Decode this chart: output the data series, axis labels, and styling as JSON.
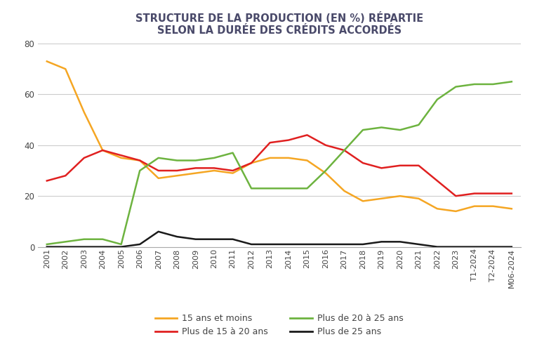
{
  "title_line1": "STRUCTURE DE LA PRODUCTION (EN %) RÉPARTIE",
  "title_line2": "SELON LA DURÉE DES CRÉDITS ACCORDÉS",
  "title_color": "#4a4a6a",
  "x_labels": [
    "2001",
    "2002",
    "2003",
    "2004",
    "2005",
    "2006",
    "2007",
    "2008",
    "2009",
    "2010",
    "2011",
    "2012",
    "2013",
    "2014",
    "2015",
    "2016",
    "2017",
    "2018",
    "2019",
    "2020",
    "2021",
    "2022",
    "2023",
    "T1-2024",
    "T2-2024",
    "M06-2024"
  ],
  "series": [
    {
      "label": "15 ans et moins",
      "color": "#f5a623",
      "values": [
        73,
        70,
        53,
        38,
        35,
        34,
        27,
        28,
        29,
        30,
        29,
        33,
        35,
        35,
        34,
        29,
        22,
        18,
        19,
        20,
        19,
        15,
        14,
        16,
        16,
        15
      ]
    },
    {
      "label": "Plus de 15 à 20 ans",
      "color": "#e02020",
      "values": [
        26,
        28,
        35,
        38,
        36,
        34,
        30,
        30,
        31,
        31,
        30,
        33,
        41,
        42,
        44,
        40,
        38,
        33,
        31,
        32,
        32,
        26,
        20,
        21,
        21,
        21
      ]
    },
    {
      "label": "Plus de 20 à 25 ans",
      "color": "#6db33f",
      "values": [
        1,
        2,
        3,
        3,
        1,
        30,
        35,
        34,
        34,
        35,
        37,
        23,
        23,
        23,
        23,
        30,
        38,
        46,
        47,
        46,
        48,
        58,
        63,
        64,
        64,
        65
      ]
    },
    {
      "label": "Plus de 25 ans",
      "color": "#1a1a1a",
      "values": [
        0,
        0,
        0,
        0,
        0,
        1,
        6,
        4,
        3,
        3,
        3,
        1,
        1,
        1,
        1,
        1,
        1,
        1,
        2,
        2,
        1,
        0,
        0,
        0,
        0,
        0
      ]
    }
  ],
  "ylim": [
    0,
    80
  ],
  "yticks": [
    0,
    20,
    40,
    60,
    80
  ],
  "background_color": "#ffffff",
  "grid_color": "#cccccc",
  "title_fontsize": 10.5,
  "tick_fontsize": 8,
  "legend_fontsize": 9
}
